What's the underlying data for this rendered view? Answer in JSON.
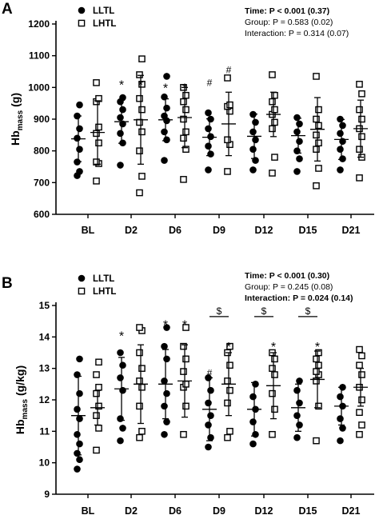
{
  "chart_data": [
    {
      "panel": "A",
      "type": "scatter",
      "ylabel_main": "Hb",
      "ylabel_sub": "mass",
      "ylabel_unit": " (g)",
      "ylim": [
        600,
        1200
      ],
      "yticks": [
        600,
        700,
        800,
        900,
        1000,
        1100,
        1200
      ],
      "ytick_labels": [
        "600",
        "700",
        "800",
        "900",
        "1000",
        "1100",
        "1200"
      ],
      "categories": [
        "BL",
        "D2",
        "D6",
        "D9",
        "D12",
        "D15",
        "D21"
      ],
      "legend": [
        {
          "marker": "filled-circle",
          "label": "LLTL"
        },
        {
          "marker": "open-square",
          "label": "LHTL"
        }
      ],
      "stats": [
        {
          "bold": "Time: P < 0.001 (0.37)",
          "normal": ""
        },
        {
          "bold": "",
          "normal": "Group: P = 0.583 (0.02)"
        },
        {
          "bold": "",
          "normal": "Interaction: P = 0.314 (0.07)"
        }
      ],
      "series": [
        {
          "name": "LLTL",
          "means": [
            838,
            892,
            898,
            843,
            846,
            848,
            836
          ],
          "sd": [
            72,
            68,
            66,
            58,
            70,
            55,
            63
          ],
          "points": [
            [
              722,
              735,
              765,
              805,
              840,
              870,
              910,
              945
            ],
            [
              755,
              825,
              855,
              885,
              905,
              930,
              955,
              968
            ],
            [
              770,
              835,
              860,
              895,
              910,
              935,
              970,
              1035
            ],
            [
              740,
              790,
              815,
              845,
              870,
              900,
              920
            ],
            [
              740,
              770,
              805,
              835,
              860,
              890,
              915
            ],
            [
              735,
              775,
              800,
              830,
              860,
              885,
              905
            ],
            [
              740,
              775,
              805,
              830,
              855,
              880,
              900
            ]
          ]
        },
        {
          "name": "LHTL",
          "means": [
            858,
            898,
            905,
            885,
            915,
            868,
            870
          ],
          "sd": [
            100,
            140,
            95,
            100,
            70,
            100,
            90
          ],
          "points": [
            [
              705,
              760,
              765,
              825,
              855,
              875,
              955,
              965,
              1015
            ],
            [
              668,
              720,
              800,
              860,
              890,
              930,
              965,
              1010,
              1040,
              1090
            ],
            [
              710,
              805,
              840,
              860,
              900,
              930,
              955,
              975,
              1000
            ],
            [
              735,
              820,
              835,
              925,
              940,
              945,
              1030
            ],
            [
              730,
              780,
              870,
              890,
              915,
              930,
              955,
              975,
              1040
            ],
            [
              690,
              745,
              805,
              825,
              850,
              880,
              900,
              930,
              1035
            ],
            [
              715,
              780,
              805,
              845,
              870,
              900,
              930,
              980,
              1010
            ]
          ]
        }
      ],
      "annotations": [
        {
          "group": 1,
          "series": 0,
          "text": "*",
          "value": 1015
        },
        {
          "group": 1,
          "series": 1,
          "text": "*",
          "value": 1015
        },
        {
          "group": 2,
          "series": 0,
          "text": "*",
          "value": 1005
        },
        {
          "group": 2,
          "series": 1,
          "text": "*",
          "value": 1005
        },
        {
          "group": 3,
          "series": 0,
          "text": "#",
          "value": 1015
        },
        {
          "group": 3,
          "series": 1,
          "text": "#",
          "value": 1055
        }
      ],
      "brackets": []
    },
    {
      "panel": "B",
      "type": "scatter",
      "ylabel_main": "Hb",
      "ylabel_sub": "mass",
      "ylabel_unit": " (g/kg)",
      "ylim": [
        9,
        15
      ],
      "yticks": [
        9,
        10,
        11,
        12,
        13,
        14,
        15
      ],
      "ytick_labels": [
        "9",
        "10",
        "11",
        "12",
        "13",
        "14",
        "15"
      ],
      "categories": [
        "BL",
        "D2",
        "D6",
        "D9",
        "D12",
        "D15",
        "D21"
      ],
      "legend": [
        {
          "marker": "filled-circle",
          "label": "LLTL"
        },
        {
          "marker": "open-square",
          "label": "LHTL"
        }
      ],
      "stats": [
        {
          "bold": "Time: P < 0.001 (0.30)",
          "normal": ""
        },
        {
          "bold": "",
          "normal": "Group: P = 0.245 (0.08)"
        },
        {
          "bold": "Interaction: P = 0.024 (0.14)",
          "normal": ""
        }
      ],
      "series": [
        {
          "name": "LLTL",
          "means": [
            11.5,
            12.35,
            12.5,
            11.7,
            11.7,
            11.75,
            11.8
          ],
          "sd": [
            1.25,
            1.0,
            1.1,
            1.0,
            0.85,
            0.75,
            0.6
          ],
          "points": [
            [
              9.8,
              10.1,
              10.3,
              10.6,
              10.9,
              11.4,
              11.7,
              12.2,
              12.8,
              13.3
            ],
            [
              10.7,
              11.1,
              11.4,
              12.3,
              12.7,
              13.1,
              13.5
            ],
            [
              10.9,
              11.3,
              11.8,
              12.2,
              12.6,
              13.3,
              13.7,
              14.3
            ],
            [
              10.5,
              10.8,
              11.2,
              11.5,
              11.9,
              12.3,
              12.7
            ],
            [
              10.6,
              10.9,
              11.3,
              11.7,
              12.1,
              12.5
            ],
            [
              10.8,
              11.2,
              11.5,
              11.9,
              12.3,
              12.6
            ],
            [
              10.7,
              11.1,
              11.4,
              11.8,
              12.1,
              12.4
            ]
          ]
        },
        {
          "name": "LHTL",
          "means": [
            11.75,
            12.5,
            12.6,
            12.5,
            12.45,
            12.65,
            12.4
          ],
          "sd": [
            0.55,
            1.25,
            1.15,
            1.0,
            1.05,
            0.9,
            0.6
          ],
          "points": [
            [
              10.4,
              11.1,
              11.5,
              11.8,
              12.2,
              12.4,
              12.8,
              13.2
            ],
            [
              10.8,
              11.0,
              11.8,
              12.4,
              12.6,
              13.0,
              13.5,
              14.2,
              14.3
            ],
            [
              10.9,
              11.8,
              12.4,
              12.5,
              12.9,
              13.3,
              13.7,
              14.3
            ],
            [
              10.8,
              11.0,
              11.9,
              12.3,
              12.6,
              13.1,
              13.5,
              13.7
            ],
            [
              10.9,
              11.7,
              12.2,
              12.8,
              13.0,
              13.3,
              13.5
            ],
            [
              10.7,
              11.8,
              12.6,
              12.8,
              12.9,
              13.1,
              13.3,
              13.5
            ],
            [
              10.9,
              11.2,
              11.6,
              12.0,
              12.4,
              12.8,
              13.1,
              13.4,
              13.6
            ]
          ]
        }
      ],
      "annotations": [
        {
          "group": 1,
          "series": 0,
          "text": "*",
          "value": 14.1
        },
        {
          "group": 2,
          "series": 0,
          "text": "*",
          "value": 14.45
        },
        {
          "group": 2,
          "series": 1,
          "text": "*",
          "value": 14.45
        },
        {
          "group": 3,
          "series": 0,
          "text": "#",
          "value": 12.85
        },
        {
          "group": 3,
          "series": 1,
          "text": "*",
          "value": 13.75
        },
        {
          "group": 4,
          "series": 1,
          "text": "*",
          "value": 13.75
        },
        {
          "group": 5,
          "series": 1,
          "text": "*",
          "value": 13.75
        }
      ],
      "brackets": [
        {
          "group": 3,
          "text": "$",
          "value": 14.8
        },
        {
          "group": 4,
          "text": "$",
          "value": 14.8
        },
        {
          "group": 5,
          "text": "$",
          "value": 14.8
        }
      ]
    }
  ]
}
